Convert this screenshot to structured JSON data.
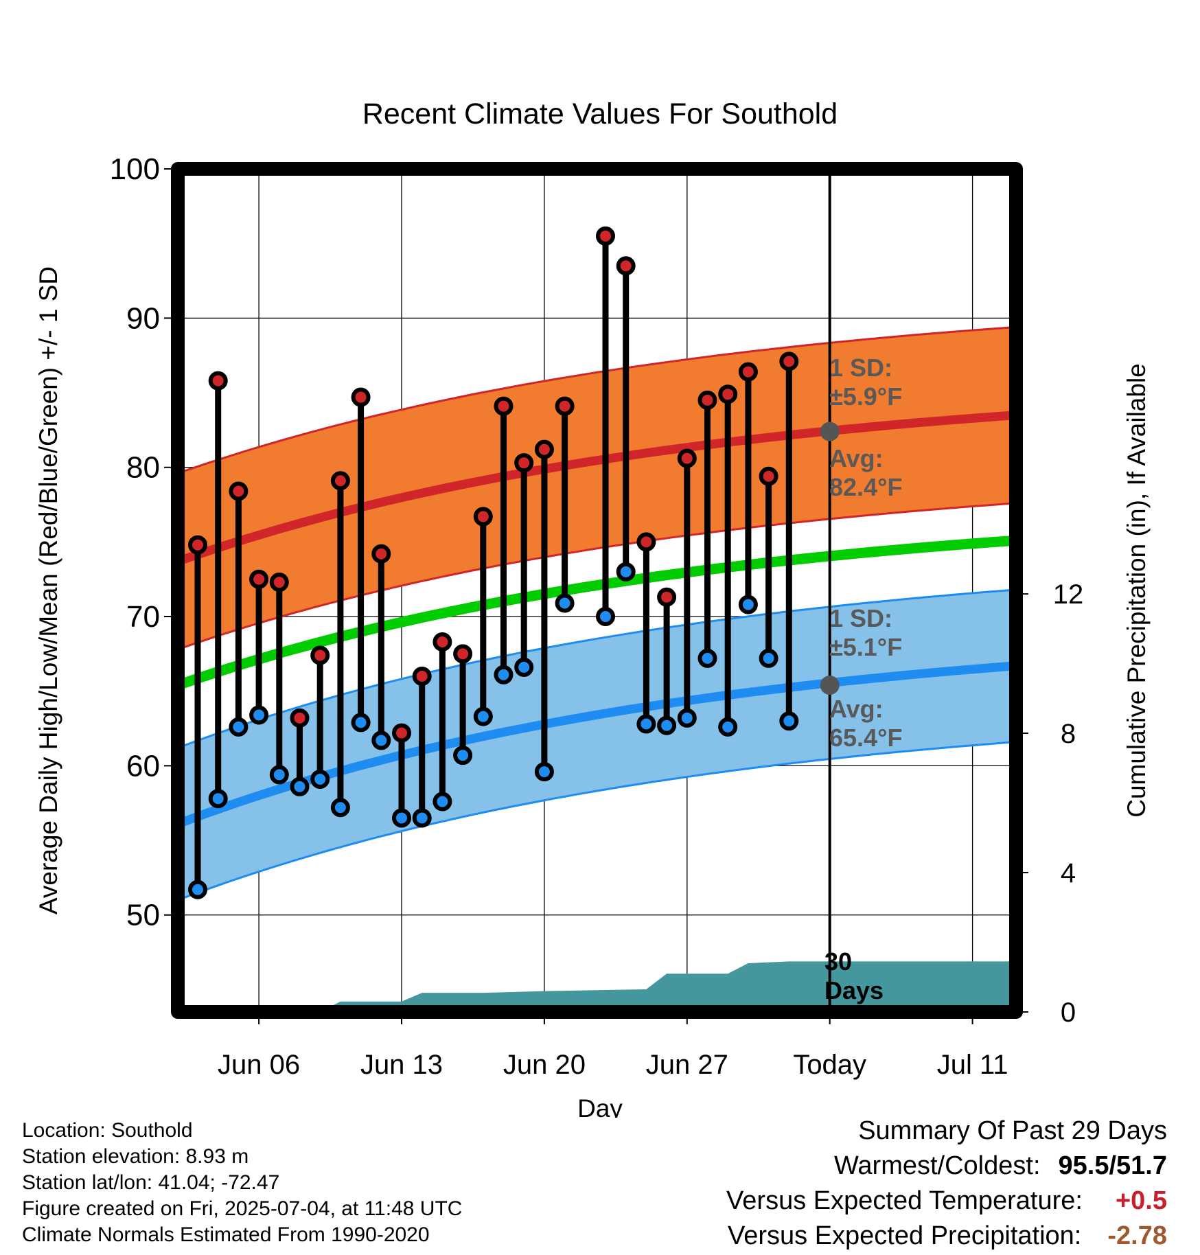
{
  "chart_data": {
    "type": "line",
    "title": "Recent Climate Values For Southold",
    "xlabel": "Day",
    "ylabel": "Average Daily High/Low/Mean (Red/Blue/Green) +/- 1 SD",
    "y2label": "Cumulative Precipitation (in), If Available",
    "x_start": "Jun 03",
    "x_end": "Jul 13",
    "xticks": [
      "Jun 06",
      "Jun 13",
      "Jun 20",
      "Jun 27",
      "Today",
      "Jul 11"
    ],
    "ylim": [
      43.5,
      100
    ],
    "yticks": [
      50,
      60,
      70,
      80,
      90,
      100
    ],
    "y2lim": [
      0,
      24.2
    ],
    "y2ticks": [
      0,
      4,
      8,
      12
    ],
    "grid": true,
    "days": [
      "Jun 03",
      "Jun 04",
      "Jun 05",
      "Jun 06",
      "Jun 07",
      "Jun 08",
      "Jun 09",
      "Jun 10",
      "Jun 11",
      "Jun 12",
      "Jun 13",
      "Jun 14",
      "Jun 15",
      "Jun 16",
      "Jun 17",
      "Jun 18",
      "Jun 19",
      "Jun 20",
      "Jun 21",
      "Jun 22",
      "Jun 23",
      "Jun 24",
      "Jun 25",
      "Jun 26",
      "Jun 27",
      "Jun 28",
      "Jun 29",
      "Jun 30",
      "Jul 01",
      "Jul 02",
      "Jul 03"
    ],
    "daily_high": [
      74.8,
      85.8,
      78.4,
      72.5,
      72.3,
      63.2,
      67.4,
      79.1,
      84.7,
      74.2,
      62.2,
      66.0,
      68.3,
      67.5,
      76.7,
      84.1,
      80.3,
      81.2,
      84.1,
      null,
      95.5,
      93.5,
      75.0,
      71.3,
      80.6,
      84.5,
      84.9,
      86.4,
      79.4,
      87.1,
      null
    ],
    "daily_low": [
      51.7,
      57.8,
      62.6,
      63.4,
      59.4,
      58.6,
      59.1,
      57.2,
      62.9,
      61.7,
      56.5,
      56.5,
      57.6,
      60.7,
      63.3,
      66.1,
      66.6,
      59.6,
      70.9,
      null,
      70.0,
      73.0,
      62.8,
      62.7,
      63.2,
      67.2,
      62.6,
      70.8,
      67.2,
      63.0,
      null
    ],
    "normal_high": {
      "start": 73.7,
      "end": 83.5,
      "sd": 5.9,
      "today": 82.4
    },
    "normal_low": {
      "start": 56.1,
      "end": 66.7,
      "sd": 5.1,
      "today": 65.4
    },
    "normal_mean": {
      "start": 65.4,
      "end": 75.1
    },
    "precip_cumulative": [
      {
        "day": "Jun 03",
        "in": 0.0
      },
      {
        "day": "Jun 09",
        "in": 0.0
      },
      {
        "day": "Jun 10",
        "in": 0.3
      },
      {
        "day": "Jun 13",
        "in": 0.3
      },
      {
        "day": "Jun 14",
        "in": 0.55
      },
      {
        "day": "Jun 17",
        "in": 0.55
      },
      {
        "day": "Jun 20",
        "in": 0.6
      },
      {
        "day": "Jun 25",
        "in": 0.65
      },
      {
        "day": "Jun 26",
        "in": 1.1
      },
      {
        "day": "Jun 29",
        "in": 1.1
      },
      {
        "day": "Jun 30",
        "in": 1.4
      },
      {
        "day": "Jul 02",
        "in": 1.45
      },
      {
        "day": "Jul 13",
        "in": 1.45
      }
    ],
    "annotations": {
      "high_sd_label": "1 SD:",
      "high_sd_value": "±5.9°F",
      "high_avg_label": "Avg:",
      "high_avg_value": "82.4°F",
      "low_sd_label": "1 SD:",
      "low_sd_value": "±5.1°F",
      "low_avg_label": "Avg:",
      "low_avg_value": "65.4°F",
      "precip_days_1": "30",
      "precip_days_2": "Days"
    },
    "colors": {
      "high_band": "#f17b2e",
      "high_line": "#d0262a",
      "low_band": "#85c1e9",
      "low_line": "#1e8cf0",
      "mean_line": "#00cc00",
      "precip_fill": "#45979e",
      "high_dot": "#d0262a",
      "low_dot": "#1e8cf0"
    }
  },
  "footer": {
    "location": "Location: Southold",
    "elevation": "Station elevation: 8.93 m",
    "latlon": "Station lat/lon: 41.04; -72.47",
    "created": "Figure created on Fri, 2025-07-04, at 11:48 UTC",
    "normals": "Climate Normals Estimated From 1990-2020"
  },
  "summary": {
    "title": "Summary Of Past 29 Days",
    "warmest_coldest_label": "Warmest/Coldest:",
    "warmest_coldest_value": "95.5/51.7",
    "temp_label": "Versus Expected Temperature:",
    "temp_value": "+0.5",
    "precip_label": "Versus Expected Precipitation:",
    "precip_value": "-2.78"
  }
}
